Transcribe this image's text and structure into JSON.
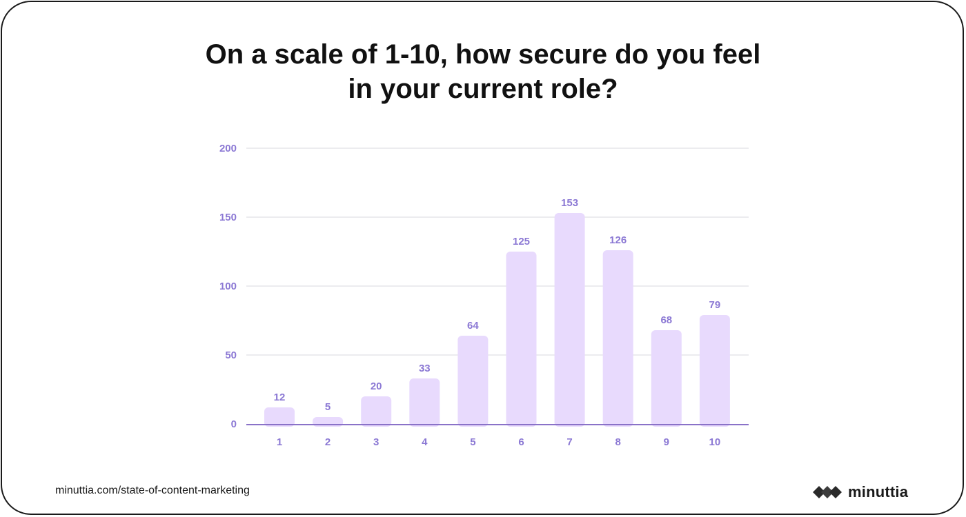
{
  "title_lines": [
    "On a scale of 1-10, how secure do you feel",
    "in your current role?"
  ],
  "footer": {
    "url": "minuttia.com/state-of-content-marketing",
    "brand": "minuttia"
  },
  "colors": {
    "bar": "#e8dafd",
    "label": "#8b78d4",
    "grid": "#e6e6ea",
    "axis": "#8a72c8",
    "title": "#111111"
  },
  "chart_data": {
    "type": "bar",
    "title": "On a scale of 1-10, how secure do you feel in your current role?",
    "categories": [
      "1",
      "2",
      "3",
      "4",
      "5",
      "6",
      "7",
      "8",
      "9",
      "10"
    ],
    "values": [
      12,
      5,
      20,
      33,
      64,
      125,
      153,
      126,
      68,
      79
    ],
    "ylim": [
      0,
      200
    ],
    "yticks": [
      0,
      50,
      100,
      150,
      200
    ],
    "xlabel": "",
    "ylabel": "",
    "grid": true,
    "data_labels": true
  }
}
